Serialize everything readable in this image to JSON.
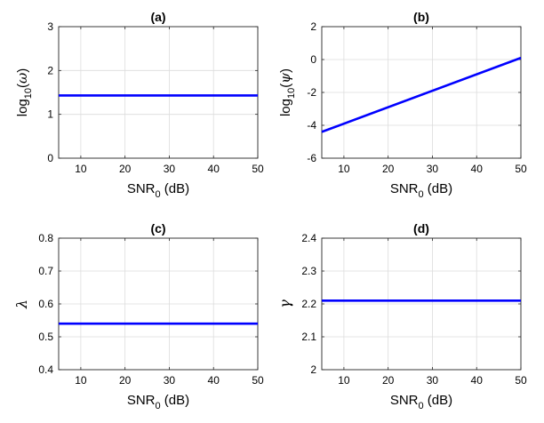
{
  "chart_data": [
    {
      "type": "line",
      "title": "(a)",
      "xlabel": {
        "base": "SNR",
        "sub": "0",
        "tail": " (dB)"
      },
      "ylabel": {
        "pre": "log",
        "sub": "10",
        "open": "(",
        "sym": "ω",
        "close": ")"
      },
      "xlim": [
        5,
        50
      ],
      "ylim": [
        0,
        3
      ],
      "xticks": [
        10,
        20,
        30,
        40,
        50
      ],
      "yticks": [
        0,
        1,
        2,
        3
      ],
      "grid": true,
      "series": [
        {
          "color": "#0000ff",
          "x": [
            5,
            50
          ],
          "y": [
            1.43,
            1.43
          ]
        }
      ]
    },
    {
      "type": "line",
      "title": "(b)",
      "xlabel": {
        "base": "SNR",
        "sub": "0",
        "tail": " (dB)"
      },
      "ylabel": {
        "pre": "log",
        "sub": "10",
        "open": "(",
        "sym": "ψ",
        "close": ")"
      },
      "xlim": [
        5,
        50
      ],
      "ylim": [
        -6,
        2
      ],
      "xticks": [
        10,
        20,
        30,
        40,
        50
      ],
      "yticks": [
        -6,
        -4,
        -2,
        0,
        2
      ],
      "grid": true,
      "series": [
        {
          "color": "#0000ff",
          "x": [
            5,
            50
          ],
          "y": [
            -4.4,
            0.1
          ]
        }
      ]
    },
    {
      "type": "line",
      "title": "(c)",
      "xlabel": {
        "base": "SNR",
        "sub": "0",
        "tail": " (dB)"
      },
      "ylabel": {
        "sym": "λ"
      },
      "xlim": [
        5,
        50
      ],
      "ylim": [
        0.4,
        0.8
      ],
      "xticks": [
        10,
        20,
        30,
        40,
        50
      ],
      "yticks": [
        0.4,
        0.5,
        0.6,
        0.7,
        0.8
      ],
      "grid": true,
      "series": [
        {
          "color": "#0000ff",
          "x": [
            5,
            50
          ],
          "y": [
            0.54,
            0.54
          ]
        }
      ]
    },
    {
      "type": "line",
      "title": "(d)",
      "xlabel": {
        "base": "SNR",
        "sub": "0",
        "tail": " (dB)"
      },
      "ylabel": {
        "sym": "γ"
      },
      "xlim": [
        5,
        50
      ],
      "ylim": [
        2,
        2.4
      ],
      "xticks": [
        10,
        20,
        30,
        40,
        50
      ],
      "yticks": [
        2,
        2.1,
        2.2,
        2.3,
        2.4
      ],
      "grid": true,
      "series": [
        {
          "color": "#0000ff",
          "x": [
            5,
            50
          ],
          "y": [
            2.21,
            2.21
          ]
        }
      ]
    }
  ]
}
